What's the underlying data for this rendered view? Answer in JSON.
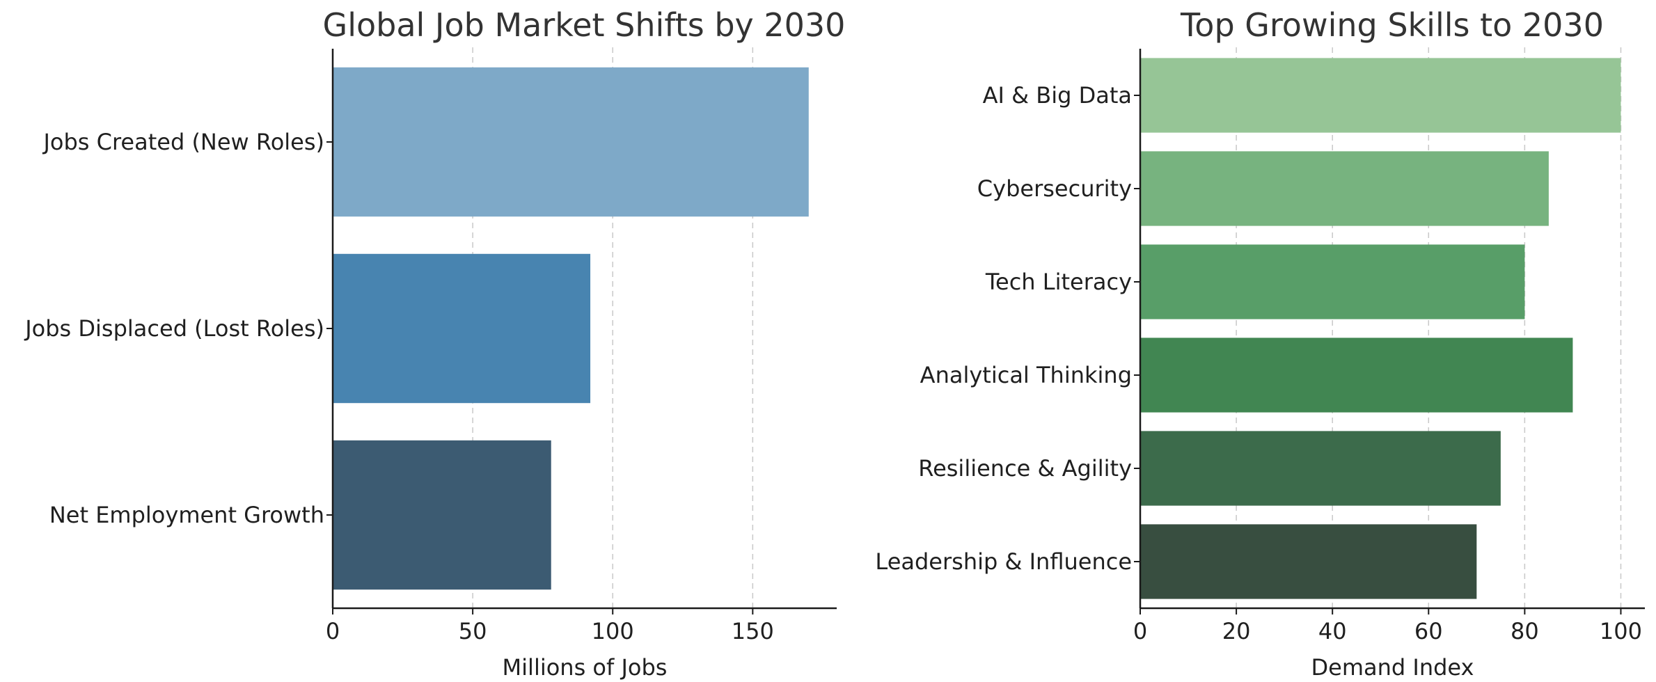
{
  "chart_data": [
    {
      "type": "bar",
      "orientation": "horizontal",
      "title": "Global Job Market Shifts by 2030",
      "xlabel": "Millions of Jobs",
      "ylabel": "",
      "categories": [
        "Jobs Created (New Roles)",
        "Jobs Displaced (Lost Roles)",
        "Net Employment Growth"
      ],
      "values": [
        170,
        92,
        78
      ],
      "colors": [
        "#7ea9c8",
        "#4884b0",
        "#3c5b72"
      ],
      "xlim": [
        0,
        180
      ],
      "xticks": [
        0,
        50,
        100,
        150
      ],
      "grid": "x-dashed"
    },
    {
      "type": "bar",
      "orientation": "horizontal",
      "title": "Top Growing Skills to 2030",
      "xlabel": "Demand Index",
      "ylabel": "",
      "categories": [
        "AI & Big Data",
        "Cybersecurity",
        "Tech Literacy",
        "Analytical Thinking",
        "Resilience & Agility",
        "Leadership & Influence"
      ],
      "values": [
        100,
        85,
        80,
        90,
        75,
        70
      ],
      "colors": [
        "#96c596",
        "#77b37f",
        "#589e68",
        "#418652",
        "#3c6b4b",
        "#384e40"
      ],
      "xlim": [
        0,
        105
      ],
      "xticks": [
        0,
        20,
        40,
        60,
        80,
        100
      ],
      "grid": "x-dashed"
    }
  ]
}
